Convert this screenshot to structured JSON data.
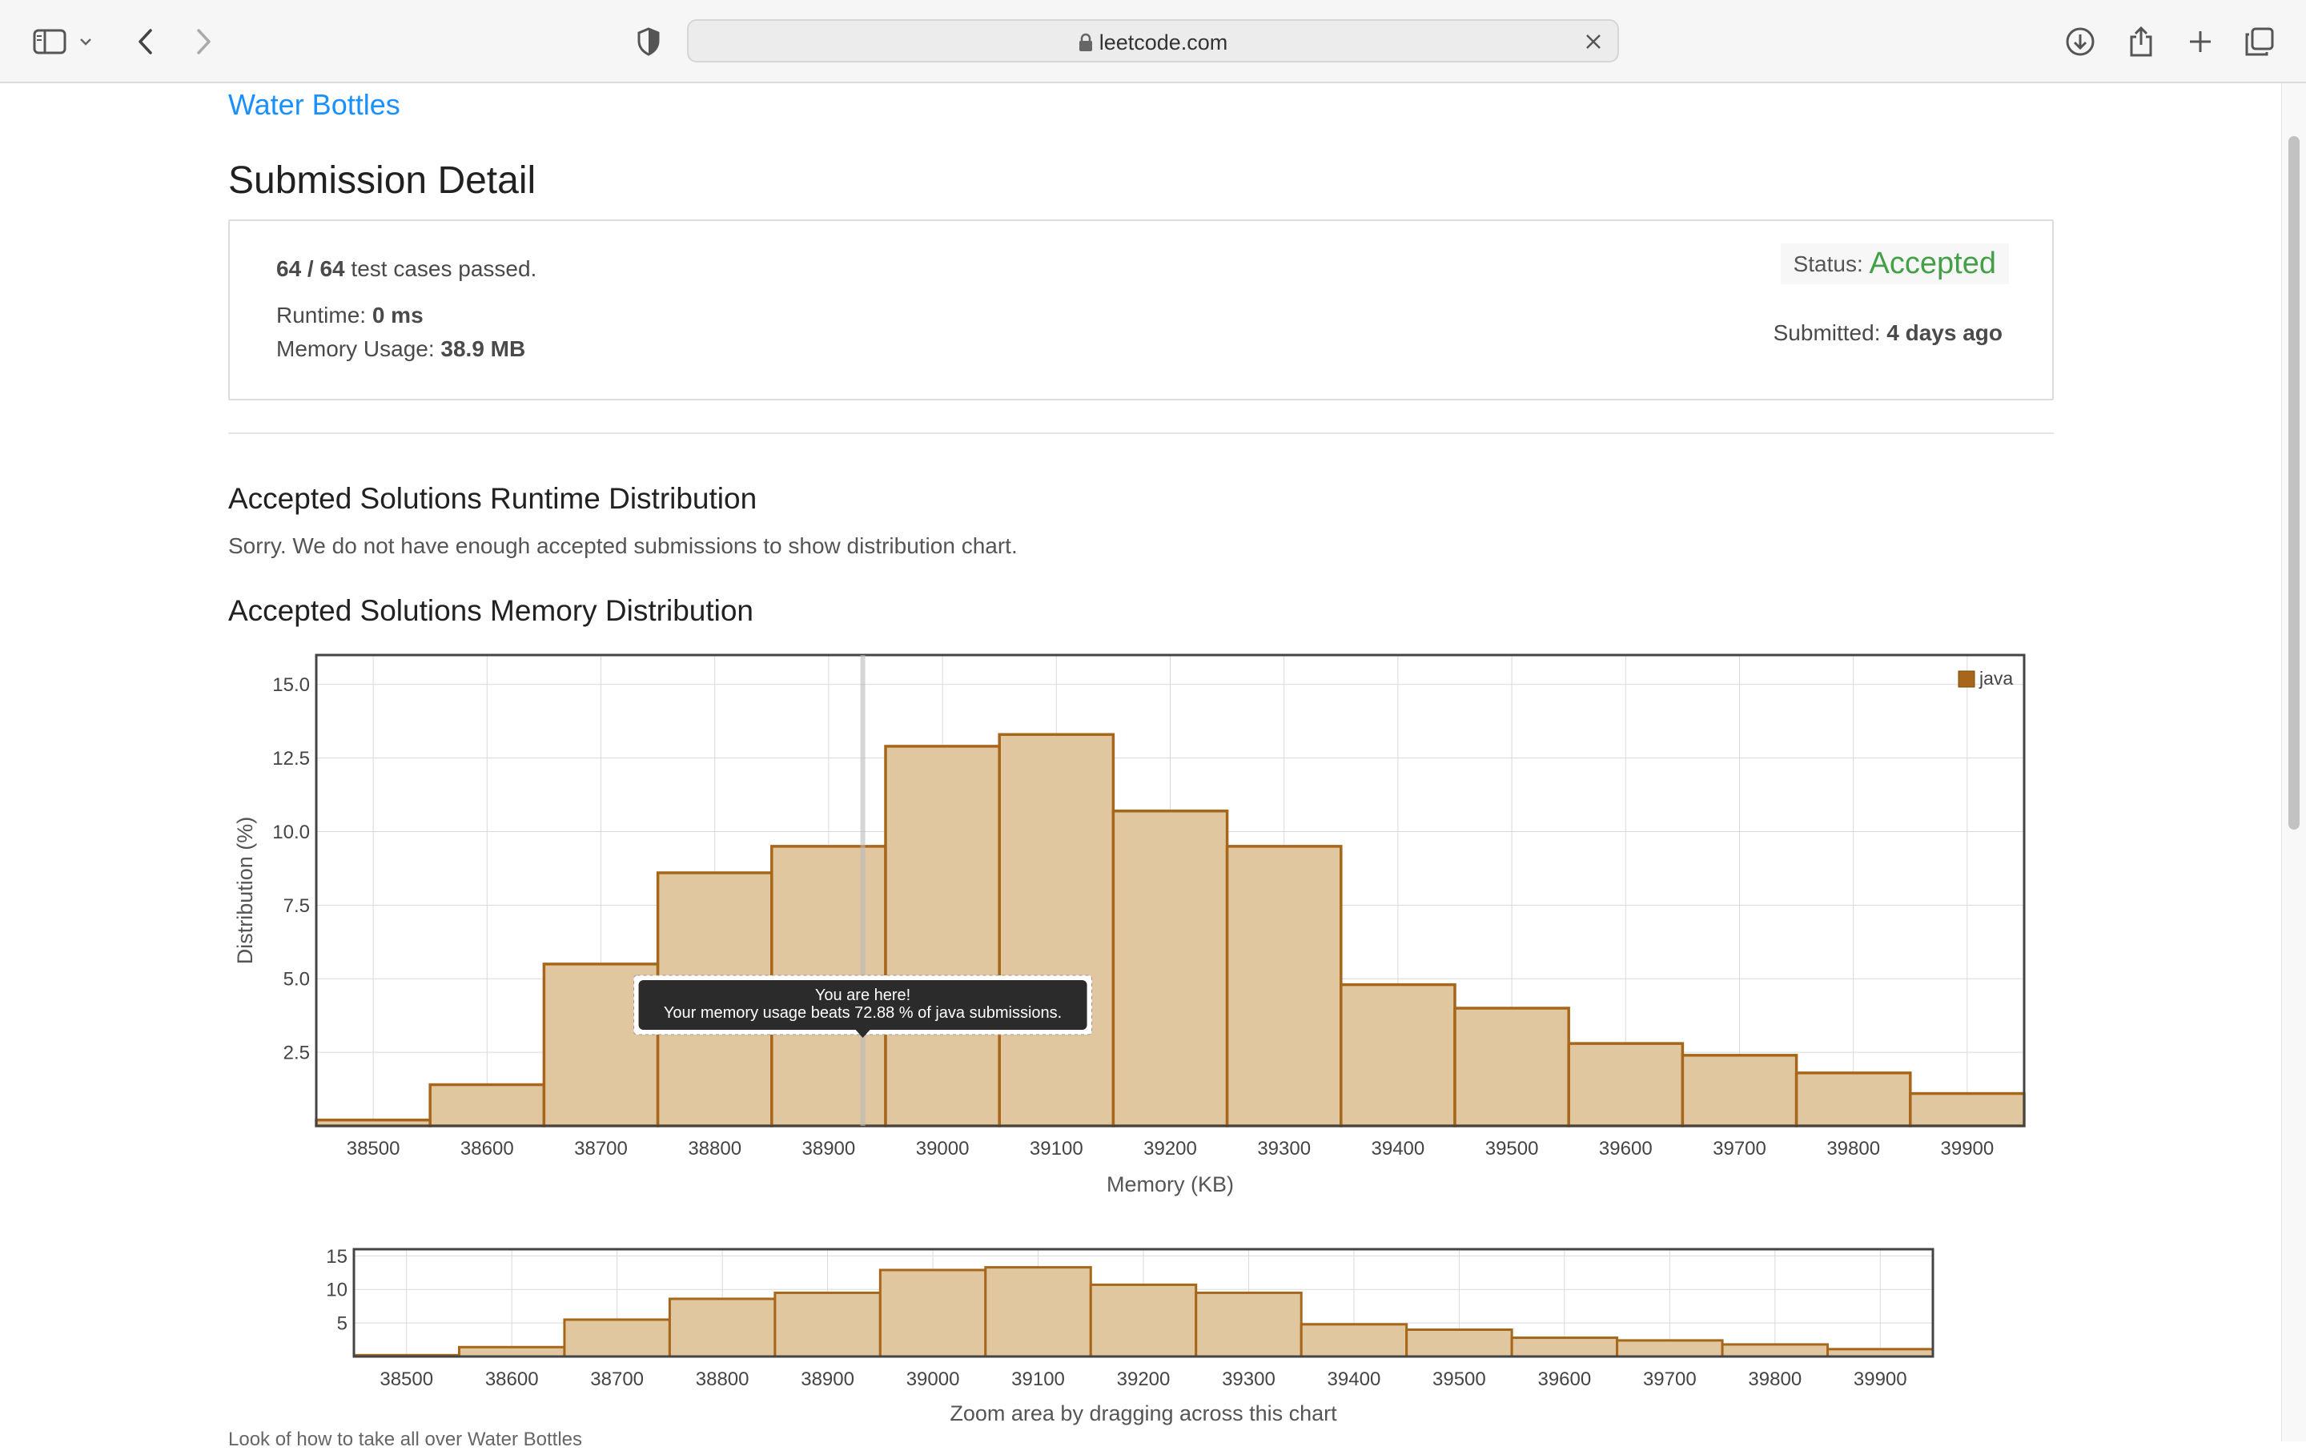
{
  "browser": {
    "url": "leetcode.com",
    "icons": [
      "sidebar-icon",
      "chevron-down-icon",
      "back-icon",
      "forward-icon",
      "shield-icon",
      "lock-icon",
      "close-icon",
      "download-icon",
      "share-icon",
      "plus-icon",
      "tabs-icon"
    ]
  },
  "problem": {
    "link_text": "Water Bottles"
  },
  "page_title": "Submission Detail",
  "detail": {
    "passed_count": "64 / 64",
    "passed_text": "test cases passed.",
    "runtime_label": "Runtime:",
    "runtime_value": "0 ms",
    "memory_label": "Memory Usage:",
    "memory_value": "38.9 MB",
    "status_label": "Status:",
    "status_value": "Accepted",
    "submitted_label": "Submitted:",
    "submitted_value": "4 days ago"
  },
  "runtime_section": {
    "title": "Accepted Solutions Runtime Distribution",
    "note": "Sorry. We do not have enough accepted submissions to show distribution chart."
  },
  "memory_section": {
    "title": "Accepted Solutions Memory Distribution"
  },
  "footer_partial": "Look of how to take all over Water Bottles",
  "colors": {
    "bar_fill": "#e0c7a0",
    "bar_stroke": "#a8661a",
    "accepted": "#43a047",
    "link": "#1a90ff"
  },
  "chart_data": [
    {
      "type": "bar",
      "xlabel": "Memory (KB)",
      "ylabel": "Distribution (%)",
      "ylim": [
        0,
        16
      ],
      "yticks": [
        "2.5",
        "5.0",
        "7.5",
        "10.0",
        "12.5",
        "15.0"
      ],
      "xticks": [
        "38500",
        "38600",
        "38700",
        "38800",
        "38900",
        "39000",
        "39100",
        "39200",
        "39300",
        "39400",
        "39500",
        "39600",
        "39700",
        "39800",
        "39900"
      ],
      "categories": [
        38500,
        38600,
        38700,
        38800,
        38900,
        39000,
        39100,
        39200,
        39300,
        39400,
        39500,
        39600,
        39700,
        39800,
        39900
      ],
      "series": [
        {
          "name": "java",
          "values": [
            0.2,
            1.4,
            5.5,
            8.6,
            9.5,
            12.9,
            13.3,
            10.7,
            9.5,
            4.8,
            4.0,
            2.8,
            2.4,
            1.8,
            1.1
          ]
        }
      ],
      "legend": "top-right",
      "grid": true,
      "marker_x": 38930,
      "tooltip": {
        "line1": "You are here!",
        "line2": "Your memory usage beats 72.88 % of java submissions."
      }
    },
    {
      "type": "bar",
      "xlabel": "Zoom area by dragging across this chart",
      "ylim": [
        0,
        16
      ],
      "yticks": [
        "5",
        "10",
        "15"
      ],
      "xticks": [
        "38500",
        "38600",
        "38700",
        "38800",
        "38900",
        "39000",
        "39100",
        "39200",
        "39300",
        "39400",
        "39500",
        "39600",
        "39700",
        "39800",
        "39900"
      ],
      "categories": [
        38500,
        38600,
        38700,
        38800,
        38900,
        39000,
        39100,
        39200,
        39300,
        39400,
        39500,
        39600,
        39700,
        39800,
        39900
      ],
      "series": [
        {
          "name": "java",
          "values": [
            0.2,
            1.4,
            5.5,
            8.6,
            9.5,
            12.9,
            13.3,
            10.7,
            9.5,
            4.8,
            4.0,
            2.8,
            2.4,
            1.8,
            1.1
          ]
        }
      ],
      "grid": true
    }
  ]
}
